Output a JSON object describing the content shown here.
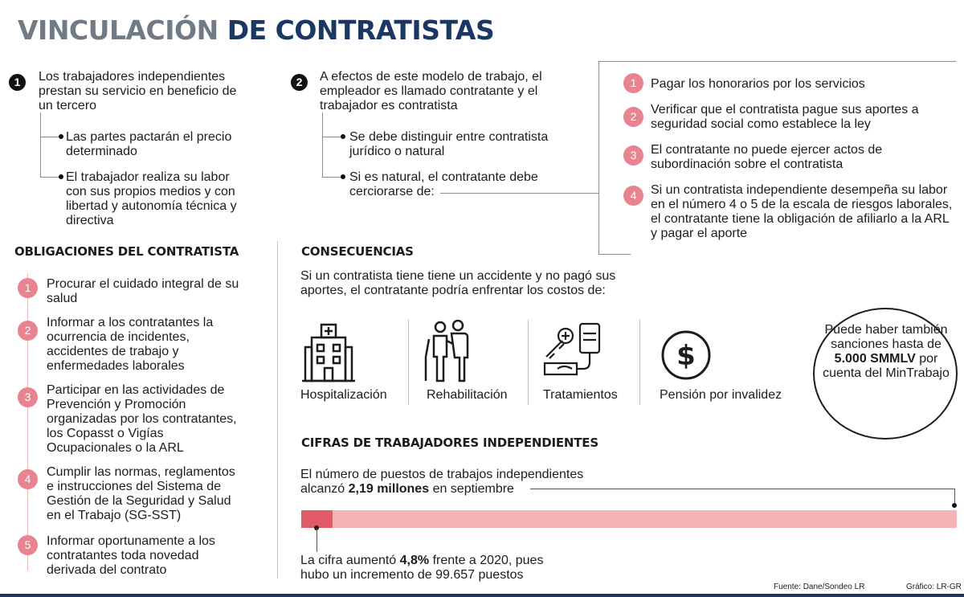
{
  "title": {
    "part1": "VINCULACIÓN",
    "part2": "DE CONTRATISTAS"
  },
  "block1": {
    "number": "1",
    "text": "Los trabajadores independientes prestan su servicio en beneficio de un tercero",
    "bullets": [
      "Las partes pactarán el precio determinado",
      "El trabajador realiza su labor con sus propios medios y con libertad y autonomía técnica y directiva"
    ]
  },
  "block2": {
    "number": "2",
    "text": "A efectos de este modelo de trabajo, el empleador es llamado contratante y el trabajador es contratista",
    "bullets": [
      "Se debe distinguir entre contratista jurídico o natural",
      "Si es natural, el contratante debe cerciorarse de:"
    ]
  },
  "duties": [
    {
      "n": "1",
      "text": "Pagar los honorarios por los servicios"
    },
    {
      "n": "2",
      "text": "Verificar que el contratista pague sus aportes a seguridad social como establece la ley"
    },
    {
      "n": "3",
      "text": "El contratante no puede ejercer actos de subordinación sobre el contratista"
    },
    {
      "n": "4",
      "text": "Si un contratista independiente desempeña su labor en el número 4 o 5 de la escala de riesgos laborales, el contratante tiene la obligación de afiliarlo a la ARL y pagar el aporte"
    }
  ],
  "obligations": {
    "heading": "OBLIGACIONES DEL CONTRATISTA",
    "items": [
      {
        "n": "1",
        "text": "Procurar el cuidado integral de su salud"
      },
      {
        "n": "2",
        "text": "Informar a los contratantes la ocurrencia de incidentes, accidentes de trabajo y enfermedades laborales"
      },
      {
        "n": "3",
        "text": "Participar en las actividades de Prevención y Promoción organizadas por los contratantes, los Copasst o Vigías Ocupacionales o la ARL"
      },
      {
        "n": "4",
        "text": "Cumplir las normas, reglamentos e instrucciones del Sistema de Gestión de la Seguridad y Salud en el Trabajo (SG-SST)"
      },
      {
        "n": "5",
        "text": "Informar oportunamente a los contratantes toda novedad derivada del contrato"
      }
    ]
  },
  "consequences": {
    "heading": "CONSECUENCIAS",
    "text": "Si un contratista tiene tiene un accidente y no pagó sus aportes, el contratante podría enfrentar los costos de:",
    "costs": [
      {
        "label": "Hospitalización",
        "icon": "hospital-icon"
      },
      {
        "label": "Rehabilitación",
        "icon": "rehabilitation-icon"
      },
      {
        "label": "Tratamientos",
        "icon": "treatment-icon"
      },
      {
        "label": "Pensión por invalidez",
        "icon": "dollar-coin-icon"
      }
    ],
    "circle": {
      "pre": "Puede haber también sanciones hasta de",
      "bold": "5.000 SMMLV",
      "post": "por cuenta del MinTrabajo"
    }
  },
  "figures": {
    "heading": "CIFRAS DE TRABAJADORES INDEPENDIENTES",
    "line1_pre": "El número de puestos de trabajos independientes alcanzó",
    "line1_bold": "2,19 millones",
    "line1_post": "en septiembre",
    "line2_pre": "La cifra aumentó",
    "line2_bold": "4,8%",
    "line2_mid": "frente a 2020, pues hubo un incremento de",
    "line2_post": "99.657 puestos",
    "bar": {
      "total_millions": 2.19,
      "increase_share": 0.048,
      "base_color": "#f3b3b7",
      "highlight_color": "#e05a68"
    }
  },
  "footer": {
    "source": "Fuente: Dane/Sondeo LR",
    "graphic": "Gráfico: LR-GR"
  },
  "colors": {
    "navy": "#1b3764",
    "gray_title": "#707b86",
    "pink_badge": "#e8848f"
  }
}
